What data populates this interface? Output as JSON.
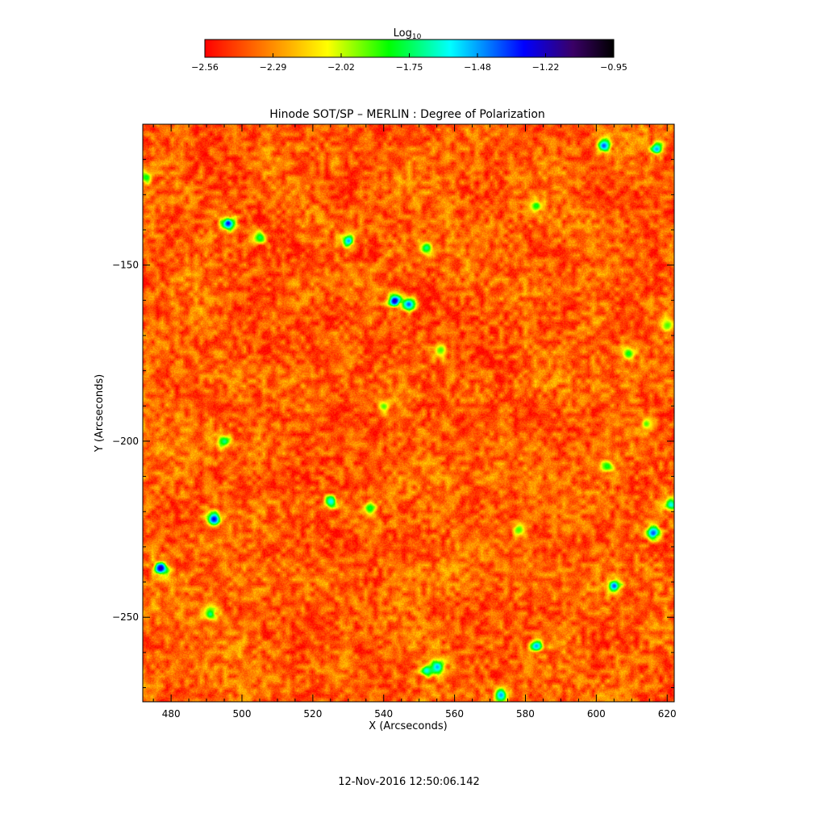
{
  "chart_data": {
    "type": "heatmap",
    "title": "Hinode SOT/SP – MERLIN : Degree of Polarization",
    "xlabel": "X (Arcseconds)",
    "ylabel": "Y (Arcseconds)",
    "xlim": [
      472,
      622
    ],
    "ylim": [
      -274,
      -110
    ],
    "x_ticks": [
      480,
      500,
      520,
      540,
      560,
      580,
      600,
      620
    ],
    "y_ticks": [
      -150,
      -200,
      -250
    ],
    "colorbar": {
      "label": "Log",
      "label_subscript": "10",
      "range": [
        -2.56,
        -0.95
      ],
      "ticks": [
        "−2.56",
        "−2.29",
        "−2.02",
        "−1.75",
        "−1.48",
        "−1.22",
        "−0.95"
      ],
      "colormap": [
        "#ff0000",
        "#ff7f00",
        "#ffff00",
        "#00ff00",
        "#00ffff",
        "#0000ff",
        "#000000"
      ]
    },
    "background_level": -2.38,
    "strong_regions": [
      {
        "x": 496,
        "y": -138,
        "level": -1.3
      },
      {
        "x": 505,
        "y": -142,
        "level": -1.75
      },
      {
        "x": 530,
        "y": -143,
        "level": -1.5
      },
      {
        "x": 543,
        "y": -160,
        "level": -1.2
      },
      {
        "x": 547,
        "y": -161,
        "level": -1.4
      },
      {
        "x": 602,
        "y": -116,
        "level": -1.4
      },
      {
        "x": 617,
        "y": -117,
        "level": -1.5
      },
      {
        "x": 473,
        "y": -125,
        "level": -1.8
      },
      {
        "x": 495,
        "y": -200,
        "level": -1.7
      },
      {
        "x": 492,
        "y": -222,
        "level": -1.3
      },
      {
        "x": 477,
        "y": -236,
        "level": -1.2
      },
      {
        "x": 491,
        "y": -249,
        "level": -1.7
      },
      {
        "x": 525,
        "y": -217,
        "level": -1.6
      },
      {
        "x": 536,
        "y": -219,
        "level": -1.8
      },
      {
        "x": 555,
        "y": -264,
        "level": -1.5
      },
      {
        "x": 552,
        "y": -265,
        "level": -1.6
      },
      {
        "x": 573,
        "y": -272,
        "level": -1.5
      },
      {
        "x": 583,
        "y": -258,
        "level": -1.5
      },
      {
        "x": 605,
        "y": -241,
        "level": -1.4
      },
      {
        "x": 616,
        "y": -226,
        "level": -1.4
      },
      {
        "x": 621,
        "y": -218,
        "level": -1.6
      },
      {
        "x": 614,
        "y": -195,
        "level": -1.9
      },
      {
        "x": 609,
        "y": -175,
        "level": -1.8
      },
      {
        "x": 620,
        "y": -167,
        "level": -1.9
      },
      {
        "x": 556,
        "y": -174,
        "level": -1.9
      },
      {
        "x": 552,
        "y": -145,
        "level": -1.7
      },
      {
        "x": 583,
        "y": -133,
        "level": -1.8
      },
      {
        "x": 540,
        "y": -190,
        "level": -1.9
      },
      {
        "x": 578,
        "y": -225,
        "level": -1.9
      },
      {
        "x": 603,
        "y": -207,
        "level": -1.8
      }
    ]
  },
  "footer": {
    "timestamp": "12-Nov-2016 12:50:06.142"
  }
}
